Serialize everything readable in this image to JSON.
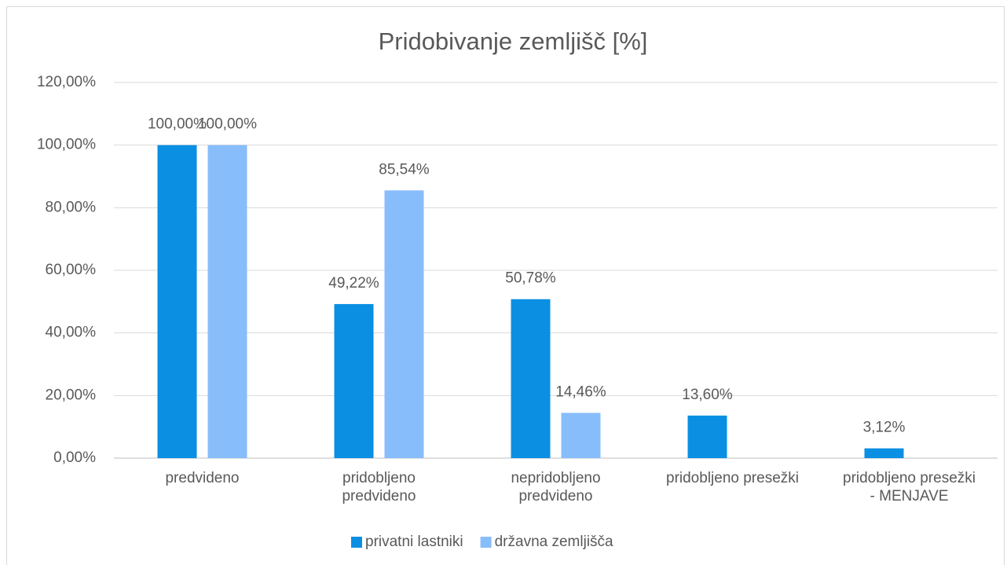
{
  "chart_data": {
    "type": "bar",
    "title": "Pridobivanje zemljišč [%]",
    "categories": [
      "predvideno",
      "pridobljeno predvideno",
      "nepridobljeno predvideno",
      "pridobljeno presežki",
      "pridobljeno presežki - MENJAVE"
    ],
    "series": [
      {
        "name": "privatni lastniki",
        "color": "#0a8fe3",
        "values": [
          100,
          49.22,
          50.78,
          13.6,
          3.12
        ],
        "value_labels": [
          "100,00%",
          "49,22%",
          "50,78%",
          "13,60%",
          "3,12%"
        ]
      },
      {
        "name": "državna zemljišča",
        "color": "#88bdfb",
        "values": [
          100,
          85.54,
          14.46,
          null,
          null
        ],
        "value_labels": [
          "100,00%",
          "85,54%",
          "14,46%",
          null,
          null
        ]
      }
    ],
    "ylim": [
      0,
      120
    ],
    "yticks": [
      {
        "value": 0,
        "label": "0,00%"
      },
      {
        "value": 20,
        "label": "20,00%"
      },
      {
        "value": 40,
        "label": "40,00%"
      },
      {
        "value": 60,
        "label": "60,00%"
      },
      {
        "value": 80,
        "label": "80,00%"
      },
      {
        "value": 100,
        "label": "100,00%"
      },
      {
        "value": 120,
        "label": "120,00%"
      }
    ],
    "grid": true,
    "legend": "bottom"
  }
}
